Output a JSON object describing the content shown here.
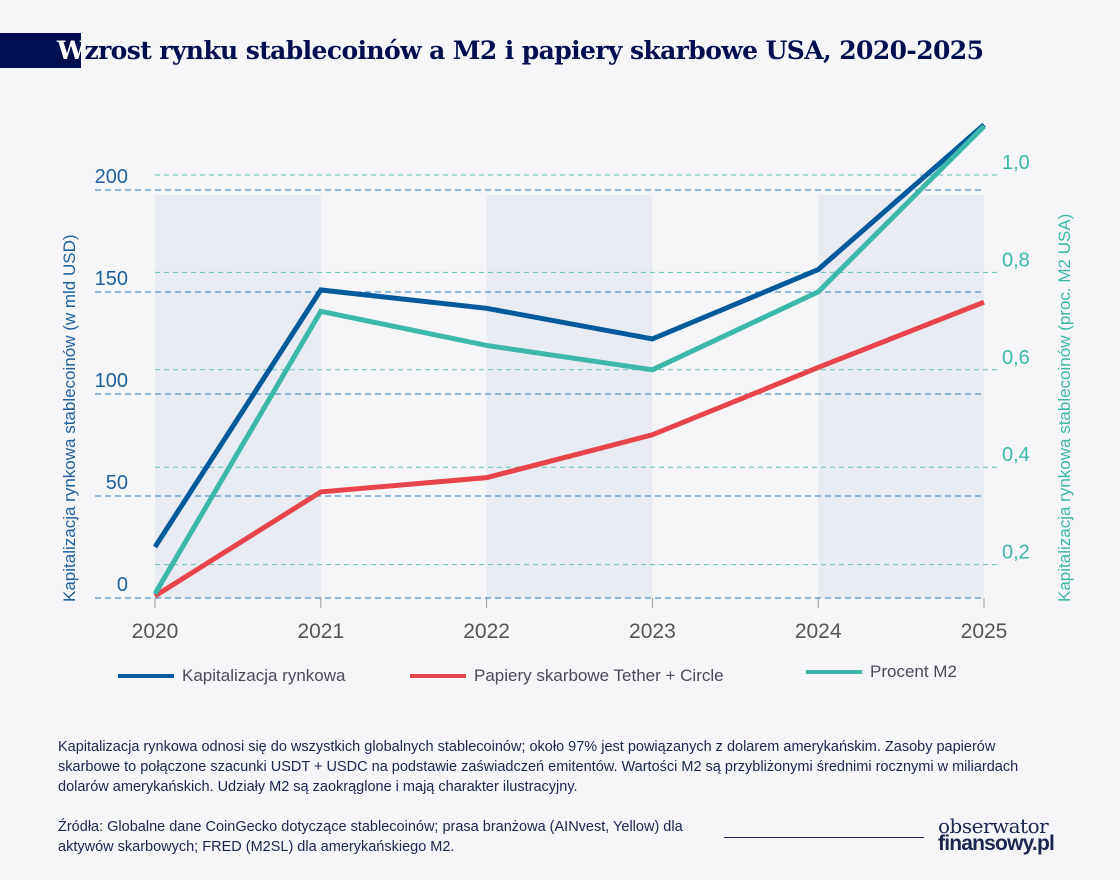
{
  "title_first_letter": "W",
  "title_rest": "zrost rynku stablecoinów a M2 i papiery skarbowe USA, 2020-2025",
  "chart_data": {
    "type": "line",
    "title": "Wzrost rynku stablecoinów a M2 i papiery skarbowe USA, 2020-2025",
    "x": [
      "2020",
      "2021",
      "2022",
      "2023",
      "2024",
      "2025"
    ],
    "ylabel": "Kapitalizacja rynkowa stablecoinów (w mld USD)",
    "y2label": "Kapitalizacja rynkowa stablecoinów (proc. M2 USA)",
    "yticks": [
      "0",
      "50",
      "100",
      "150",
      "200"
    ],
    "y2ticks": [
      "0,2",
      "0,4",
      "0,6",
      "0,8",
      "1,0"
    ],
    "ylim": [
      0,
      200
    ],
    "y2lim": [
      0,
      1.0
    ],
    "grid": true,
    "legend_position": "bottom",
    "series": [
      {
        "name": "Kapitalizacja rynkowa",
        "axis": "left",
        "color": "#005a9c",
        "values": [
          25,
          151,
          142,
          127,
          161,
          232
        ]
      },
      {
        "name": "Papiery skarbowe Tether + Circle",
        "axis": "left",
        "color": "#e8444c",
        "values": [
          1,
          52,
          59,
          80,
          113,
          145
        ]
      },
      {
        "name": "Procent M2",
        "axis": "right",
        "color": "#3cb8a8",
        "values": [
          0.14,
          0.72,
          0.65,
          0.6,
          0.76,
          1.1
        ]
      }
    ]
  },
  "note": "Kapitalizacja rynkowa odnosi się do wszystkich globalnych stablecoinów; około 97% jest powiązanych z dolarem amerykańskim. Zasoby papierów skarbowe to połączone szacunki USDT + USDC na podstawie zaświadczeń emitentów. Wartości M2 są przybliżonymi średnimi rocznymi w miliardach dolarów amerykańskich. Udziały M2 są zaokrąglone i mają charakter ilustracyjny.",
  "source": "Źródła: Globalne dane CoinGecko dotyczące stablecoinów; prasa branżowa (AINvest, Yellow) dla aktywów skarbowych; FRED (M2SL) dla amerykańskiego M2.",
  "logo": {
    "line1": "obserwator",
    "line2": "finansowy.pl"
  }
}
